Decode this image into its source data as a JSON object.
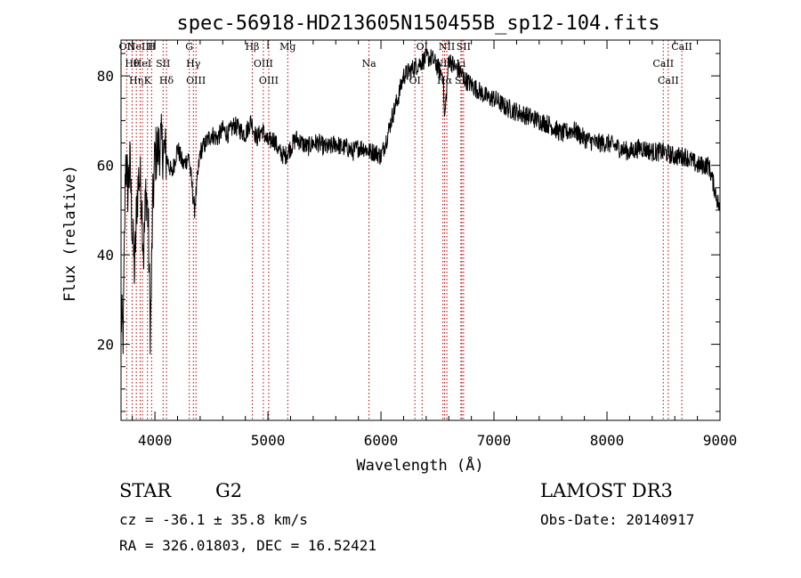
{
  "chart_data": {
    "type": "line",
    "title": "spec-56918-HD213605N150455B_sp12-104.fits",
    "xlabel": "Wavelength (Å)",
    "ylabel": "Flux (relative)",
    "xlim": [
      3700,
      9000
    ],
    "ylim": [
      3,
      88
    ],
    "xticks": [
      4000,
      5000,
      6000,
      7000,
      8000,
      9000
    ],
    "yticks": [
      20,
      40,
      60,
      80
    ],
    "grid": false,
    "series": [
      {
        "x": [
          3700,
          3720,
          3740,
          3760,
          3780,
          3800,
          3820,
          3840,
          3860,
          3880,
          3900,
          3920,
          3940,
          3960,
          3980,
          4000,
          4050,
          4100,
          4150,
          4200,
          4250,
          4300,
          4350,
          4400,
          4450,
          4500,
          4550,
          4600,
          4650,
          4700,
          4750,
          4800,
          4850,
          4900,
          4950,
          5000,
          5050,
          5100,
          5150,
          5200,
          5250,
          5300,
          5350,
          5400,
          5450,
          5500,
          5550,
          5600,
          5650,
          5700,
          5750,
          5800,
          5850,
          5900,
          5950,
          6000,
          6050,
          6100,
          6150,
          6200,
          6250,
          6300,
          6350,
          6400,
          6450,
          6500,
          6550,
          6563,
          6600,
          6650,
          6700,
          6750,
          6800,
          6850,
          6900,
          6950,
          7000,
          7100,
          7200,
          7300,
          7400,
          7500,
          7600,
          7700,
          7800,
          7900,
          8000,
          8100,
          8200,
          8300,
          8400,
          8500,
          8600,
          8700,
          8800,
          8900,
          9000
        ],
        "values": [
          26,
          22,
          62,
          55,
          60,
          45,
          36,
          52,
          58,
          54,
          40,
          55,
          48,
          22,
          50,
          62,
          65,
          62,
          58,
          64,
          60,
          62,
          50,
          63,
          65,
          67,
          66,
          68,
          67,
          69,
          68,
          67,
          70,
          66,
          68,
          65,
          66,
          63,
          62,
          64,
          66,
          65,
          64,
          65,
          65,
          64,
          64,
          65,
          64,
          64,
          63,
          64,
          64,
          63,
          63,
          62,
          66,
          71,
          75,
          80,
          81,
          82,
          83,
          84,
          84,
          82,
          80,
          70,
          84,
          82,
          81,
          79,
          78,
          77,
          76,
          75,
          75,
          73,
          72,
          71,
          70,
          69,
          67,
          68,
          66,
          65,
          65,
          64,
          63,
          64,
          63,
          63,
          62,
          62,
          60,
          60,
          50
        ]
      }
    ],
    "lines": [
      {
        "wl": 3750,
        "label": "OII"
      },
      {
        "wl": 3798,
        "label": "Hθ"
      },
      {
        "wl": 3835,
        "label": "Hη"
      },
      {
        "wl": 3869,
        "label": "NeIII"
      },
      {
        "wl": 3889,
        "label": "HeI"
      },
      {
        "wl": 3934,
        "label": "K"
      },
      {
        "wl": 3970,
        "label": "H"
      },
      {
        "wl": 4072,
        "label": "SII"
      },
      {
        "wl": 4102,
        "label": "Hδ"
      },
      {
        "wl": 4304,
        "label": "G"
      },
      {
        "wl": 4340,
        "label": "Hγ"
      },
      {
        "wl": 4363,
        "label": "OIII"
      },
      {
        "wl": 4861,
        "label": "Hβ"
      },
      {
        "wl": 4959,
        "label": "OIII"
      },
      {
        "wl": 5007,
        "label": "OIII"
      },
      {
        "wl": 5175,
        "label": "Mg"
      },
      {
        "wl": 5894,
        "label": "Na"
      },
      {
        "wl": 6300,
        "label": "OI"
      },
      {
        "wl": 6364,
        "label": "OI"
      },
      {
        "wl": 6548,
        "label": "NII"
      },
      {
        "wl": 6563,
        "label": "Hα"
      },
      {
        "wl": 6583,
        "label": "NII"
      },
      {
        "wl": 6707,
        "label": "Li"
      },
      {
        "wl": 6716,
        "label": "SII"
      },
      {
        "wl": 6731,
        "label": "SII"
      },
      {
        "wl": 8498,
        "label": "CaII"
      },
      {
        "wl": 8542,
        "label": "CaII"
      },
      {
        "wl": 8662,
        "label": "CaII"
      }
    ]
  },
  "info": {
    "object_type": "STAR",
    "subclass": "G2",
    "redshift": "cz = -36.1 ± 35.8 km/s",
    "coords": "RA = 326.01803, DEC =  16.52421",
    "survey": "LAMOST DR3",
    "obs_date": "Obs-Date: 20140917"
  }
}
